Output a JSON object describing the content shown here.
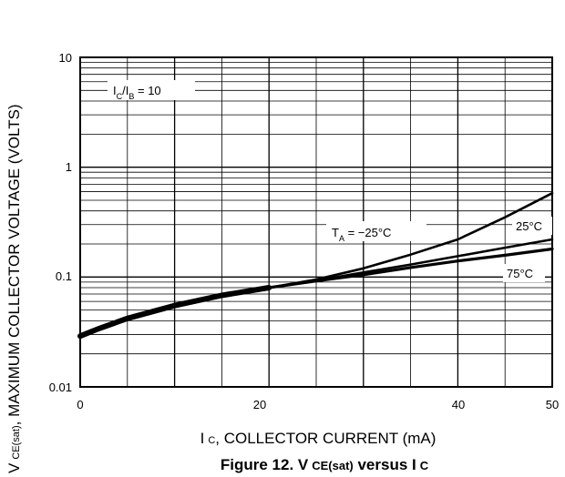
{
  "chart_data": {
    "type": "line",
    "x_scale": "linear",
    "y_scale": "log",
    "xlim": [
      0,
      50
    ],
    "ylim": [
      0.01,
      10
    ],
    "x_ticks": [
      "0",
      "20",
      "40",
      "50"
    ],
    "y_ticks": [
      "10",
      "1",
      "0.1",
      "0.01"
    ],
    "grid": true,
    "xlabel": {
      "main": "I",
      "sub": "C",
      "rest": ", COLLECTOR CURRENT (mA)"
    },
    "ylabel": {
      "main": "V",
      "sub": "CE(sat)",
      "rest": ", MAXIMUM COLLECTOR VOLTAGE (VOLTS)"
    },
    "caption": {
      "main": "Figure 12. V",
      "sub1": "CE(sat)",
      "mid": " versus I",
      "sub2": "C"
    },
    "condition": {
      "a": "I",
      "a_sub": "C",
      "b": "/I",
      "b_sub": "B",
      "rest": " = 10"
    },
    "series": [
      {
        "name": "-25°C",
        "label": {
          "pre": "T",
          "sub": "A",
          "post": " = −25°C"
        },
        "x": [
          0,
          2,
          5,
          10,
          15,
          20,
          25,
          30,
          35,
          40,
          45,
          50
        ],
        "y": [
          0.029,
          0.034,
          0.042,
          0.055,
          0.068,
          0.08,
          0.095,
          0.12,
          0.16,
          0.22,
          0.35,
          0.58
        ]
      },
      {
        "name": "25°C",
        "label": {
          "pre": "25°C",
          "sub": "",
          "post": ""
        },
        "x": [
          0,
          2,
          5,
          10,
          15,
          20,
          25,
          30,
          35,
          40,
          45,
          50
        ],
        "y": [
          0.029,
          0.034,
          0.042,
          0.055,
          0.068,
          0.08,
          0.093,
          0.11,
          0.13,
          0.155,
          0.185,
          0.22
        ]
      },
      {
        "name": "75°C",
        "label": {
          "pre": "75°C",
          "sub": "",
          "post": ""
        },
        "x": [
          0,
          2,
          5,
          10,
          15,
          20,
          25,
          30,
          35,
          40,
          45,
          50
        ],
        "y": [
          0.029,
          0.034,
          0.042,
          0.055,
          0.068,
          0.08,
          0.092,
          0.105,
          0.122,
          0.14,
          0.158,
          0.18
        ]
      }
    ]
  }
}
